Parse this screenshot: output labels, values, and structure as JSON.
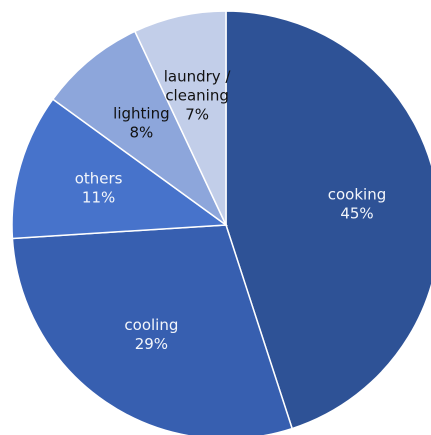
{
  "chart_data": {
    "type": "pie",
    "slices": [
      {
        "name": "cooking",
        "value": 45,
        "label_lines": [
          "cooking",
          "45%"
        ],
        "color": "#2e5296",
        "text_color": "#f3f6fb"
      },
      {
        "name": "cooling",
        "value": 29,
        "label_lines": [
          "cooling",
          "29%"
        ],
        "color": "#375fb0",
        "text_color": "#f3f6fb"
      },
      {
        "name": "others",
        "value": 11,
        "label_lines": [
          "others",
          "11%"
        ],
        "color": "#4773cb",
        "text_color": "#f3f6fb"
      },
      {
        "name": "lighting",
        "value": 8,
        "label_lines": [
          "lighting",
          "8%"
        ],
        "color": "#8da6db",
        "text_color": "#111111"
      },
      {
        "name": "laundry / cleaning",
        "value": 7,
        "label_lines": [
          "laundry /",
          "cleaning",
          "7%"
        ],
        "color": "#c2cee9",
        "text_color": "#111111"
      }
    ],
    "start_angle_deg": 0,
    "direction": "clockwise",
    "border_color": "#ffffff",
    "legend": false
  }
}
